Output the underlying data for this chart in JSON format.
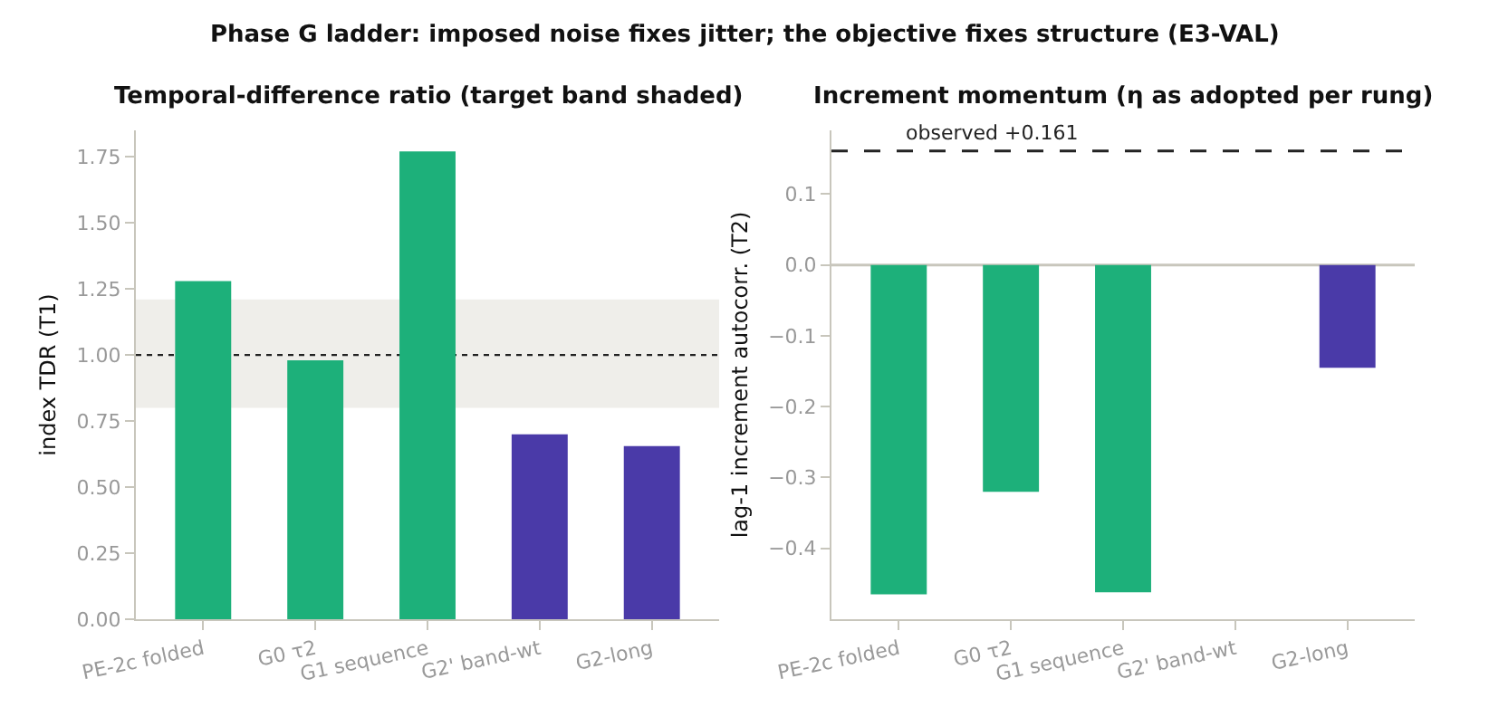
{
  "chart_data": [
    {
      "type": "bar",
      "title": "Temporal-difference ratio (target band shaded)",
      "ylabel": "index TDR (T1)",
      "categories": [
        "PE-2c folded",
        "G0 τ2",
        "G1 sequence",
        "G2' band-wt",
        "G2-long"
      ],
      "values": [
        1.28,
        0.98,
        1.77,
        0.7,
        0.655
      ],
      "colors": [
        "#1db07a",
        "#1db07a",
        "#1db07a",
        "#4a3aa8",
        "#4a3aa8"
      ],
      "ylim": [
        0,
        1.85
      ],
      "yticks": [
        {
          "value": 0,
          "label": "0.00"
        },
        {
          "value": 0.25,
          "label": "0.25"
        },
        {
          "value": 0.5,
          "label": "0.50"
        },
        {
          "value": 0.75,
          "label": "0.75"
        },
        {
          "value": 1,
          "label": "1.00"
        },
        {
          "value": 1.25,
          "label": "1.25"
        },
        {
          "value": 1.5,
          "label": "1.50"
        },
        {
          "value": 1.75,
          "label": "1.75"
        }
      ],
      "bands": [
        {
          "axis": "y",
          "from": 0.8,
          "to": 1.21,
          "color": "#efeeea"
        }
      ],
      "ref_lines": [
        {
          "axis": "y",
          "value": 1.0,
          "color": "#222222",
          "line_style": "dotted"
        }
      ],
      "annotations": [
        "Phase G ladder: imposed noise fixes jitter; the objective fixes structure (E3-VAL)"
      ],
      "grid": false
    },
    {
      "type": "bar",
      "title": "Increment momentum (η as adopted per rung)",
      "ylabel": "lag-1 increment autocorr. (T2)",
      "categories": [
        "PE-2c folded",
        "G0 τ2",
        "G1 sequence",
        "G2' band-wt",
        "G2-long"
      ],
      "values": [
        -0.465,
        -0.32,
        -0.462,
        null,
        -0.145
      ],
      "colors": [
        "#1db07a",
        "#1db07a",
        "#1db07a",
        "#4a3aa8",
        "#4a3aa8"
      ],
      "ylim": [
        -0.5,
        0.19
      ],
      "yticks": [
        {
          "value": -0.4,
          "label": "−0.4"
        },
        {
          "value": -0.3,
          "label": "−0.3"
        },
        {
          "value": -0.2,
          "label": "−0.2"
        },
        {
          "value": -0.1,
          "label": "−0.1"
        },
        {
          "value": 0,
          "label": "0.0"
        },
        {
          "value": 0.1,
          "label": "0.1"
        }
      ],
      "ref_lines": [
        {
          "axis": "y",
          "value": 0.161,
          "label": "observed +0.161",
          "color": "#222222",
          "line_style": "dashed"
        },
        {
          "axis": "y",
          "value": 0,
          "color": "#c8c6bc",
          "line_style": "solid"
        }
      ],
      "grid": false
    }
  ]
}
